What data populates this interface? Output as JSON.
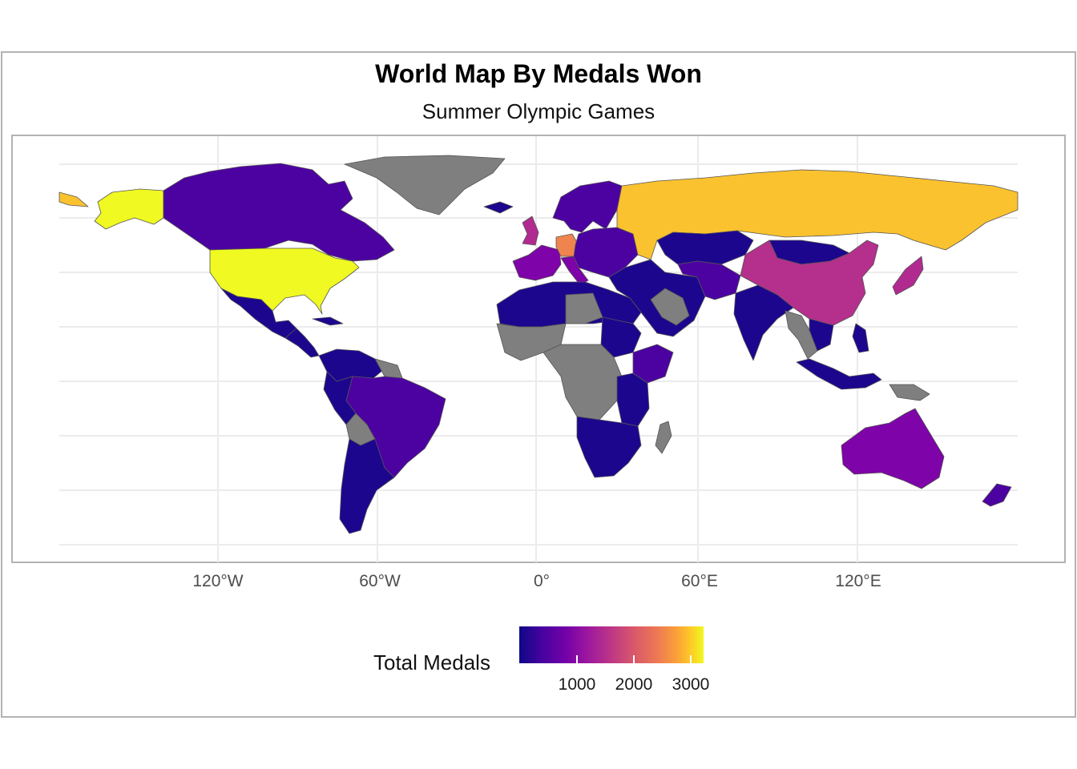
{
  "title": "World Map By Medals Won",
  "subtitle": "Summer Olympic Games",
  "x_axis": {
    "ticks": [
      "120°W",
      "60°W",
      "0°",
      "60°E",
      "120°E"
    ]
  },
  "legend": {
    "title": "Total Medals",
    "ticks": [
      "1000",
      "2000",
      "3000"
    ],
    "palette": [
      "#0d0887",
      "#7201a8",
      "#bd3786",
      "#ed7953",
      "#fdca26",
      "#f0f921"
    ]
  },
  "colors": {
    "no_data": "#7f7f7f",
    "border": "#555555",
    "grid": "#ebebeb",
    "ocean": "#ffffff",
    "usa": "#f0f921",
    "russia": "#fbc22f",
    "germany": "#f0844f",
    "china": "#b52f8c",
    "uk": "#b12a90",
    "australia": "#7e03a8",
    "canada": "#4c02a1",
    "low": "#1d068e"
  }
}
